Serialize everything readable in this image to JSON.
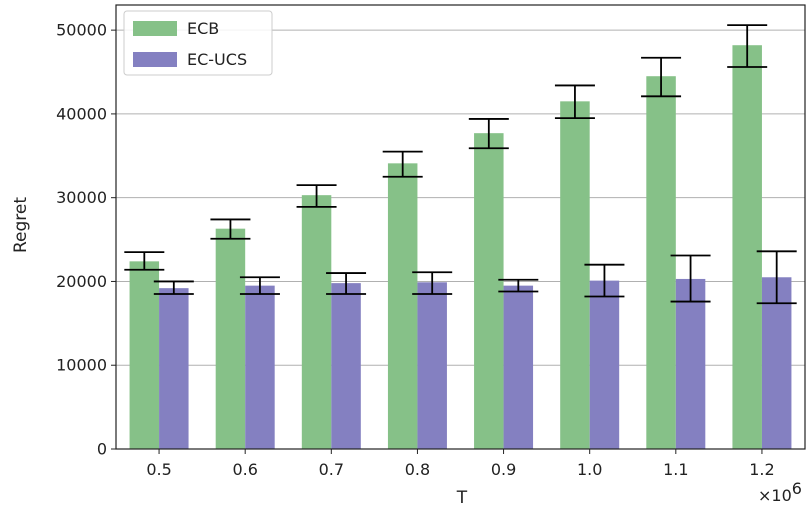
{
  "chart_data": {
    "type": "bar",
    "xlabel": "T",
    "ylabel": "Regret",
    "x_offset_label": "×10",
    "x_offset_exponent": "6",
    "categories": [
      "0.5",
      "0.6",
      "0.7",
      "0.8",
      "0.9",
      "1.0",
      "1.1",
      "1.2"
    ],
    "ylim": [
      0,
      53000
    ],
    "yticks": [
      0,
      10000,
      20000,
      30000,
      40000,
      50000
    ],
    "ytick_labels": [
      "0",
      "10000",
      "20000",
      "30000",
      "40000",
      "50000"
    ],
    "grid": "horizontal",
    "legend_position": "top-left",
    "series": [
      {
        "name": "ECB",
        "color": "#86c188",
        "values": [
          22400,
          26300,
          30300,
          34100,
          37700,
          41500,
          44500,
          48200
        ],
        "err_low": [
          21400,
          25100,
          28900,
          32500,
          35900,
          39500,
          42100,
          45600
        ],
        "err_high": [
          23500,
          27400,
          31500,
          35500,
          39400,
          43400,
          46700,
          50600
        ]
      },
      {
        "name": "EC-UCS",
        "color": "#8480c1",
        "values": [
          19200,
          19500,
          19800,
          19900,
          19500,
          20100,
          20300,
          20500
        ],
        "err_low": [
          18500,
          18500,
          18500,
          18500,
          18800,
          18200,
          17600,
          17400
        ],
        "err_high": [
          20000,
          20500,
          21000,
          21100,
          20200,
          22000,
          23100,
          23600
        ]
      }
    ]
  }
}
